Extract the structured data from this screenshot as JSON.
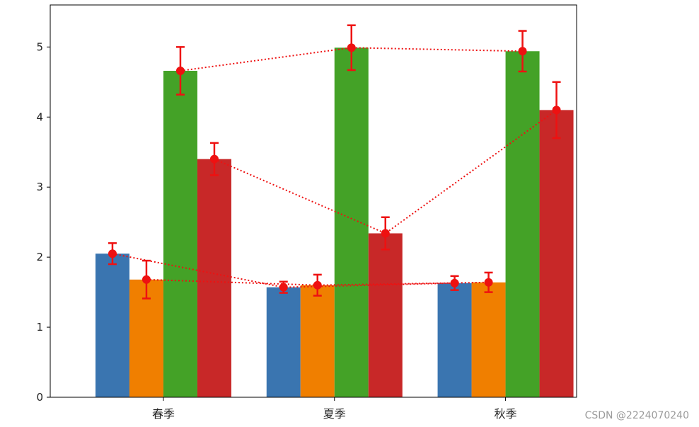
{
  "chart_data": {
    "type": "bar",
    "categories": [
      "春季",
      "夏季",
      "秋季"
    ],
    "series": [
      {
        "color": "#3a75b0",
        "values": [
          2.05,
          1.57,
          1.63
        ],
        "errors": [
          0.15,
          0.08,
          0.1
        ]
      },
      {
        "color": "#f07f00",
        "values": [
          1.68,
          1.6,
          1.64
        ],
        "errors": [
          0.27,
          0.15,
          0.14
        ]
      },
      {
        "color": "#44a227",
        "values": [
          4.66,
          4.99,
          4.94
        ],
        "errors": [
          0.34,
          0.32,
          0.29
        ]
      },
      {
        "color": "#c82828",
        "values": [
          3.4,
          2.34,
          4.1
        ],
        "errors": [
          0.23,
          0.23,
          0.4
        ]
      }
    ],
    "error_bar_color": "#ee1111",
    "connector_style": "dotted red line linking each series' error-bar markers",
    "ylim": [
      0,
      5.6
    ],
    "yticks": [
      0,
      1,
      2,
      3,
      4,
      5
    ],
    "grid": false,
    "legend": "none",
    "title": "",
    "xlabel": "",
    "ylabel": ""
  },
  "watermark": "CSDN @2224070240"
}
